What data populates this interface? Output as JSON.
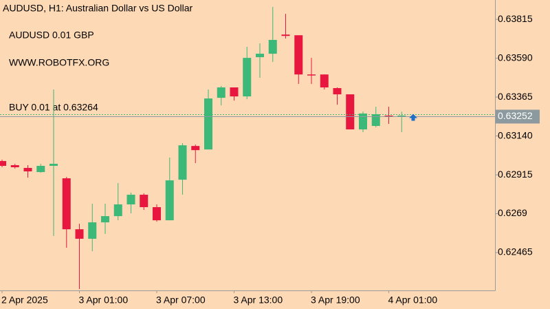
{
  "chart_data": {
    "type": "candlestick",
    "title": "AUDUSD, H1:  Australian Dollar vs US Dollar",
    "annotations": [
      "AUDUSD 0.01 GBP",
      "WWW.ROBOTFX.ORG"
    ],
    "buy_order": {
      "label": "BUY 0.01 at 0.63264",
      "price": 0.63264,
      "color": "#1e6fc8"
    },
    "current_price": 0.63252,
    "up_color": "#3cb878",
    "down_color": "#e8173f",
    "categories": [
      "2 Apr 2025",
      null,
      null,
      null,
      null,
      null,
      "3 Apr 01:00",
      null,
      null,
      null,
      null,
      null,
      "3 Apr 07:00",
      null,
      null,
      null,
      null,
      null,
      "3 Apr 13:00",
      null,
      null,
      null,
      null,
      null,
      "3 Apr 19:00",
      null,
      null,
      null,
      null,
      null,
      "4 Apr 01:00",
      null
    ],
    "open": [
      0.62995,
      0.62971,
      0.62955,
      0.62931,
      0.62967,
      0.62895,
      0.626,
      0.62545,
      0.6264,
      0.62676,
      0.62744,
      0.628,
      0.62728,
      0.62652,
      0.62887,
      0.63082,
      0.63062,
      0.63361,
      0.63421,
      0.63369,
      0.63596,
      0.63616,
      0.63727,
      0.63723,
      0.63496,
      0.63496,
      0.63417,
      0.63381,
      0.63178,
      0.63198,
      0.63258,
      0.63254
    ],
    "high": [
      0.63003,
      0.62979,
      0.62971,
      0.62979,
      0.63409,
      0.62903,
      0.62632,
      0.62748,
      0.62748,
      0.62867,
      0.62812,
      0.62808,
      0.62744,
      0.63015,
      0.63098,
      0.6309,
      0.63409,
      0.63429,
      0.63421,
      0.63656,
      0.63676,
      0.63887,
      0.63847,
      0.63723,
      0.63592,
      0.63496,
      0.63421,
      0.63381,
      0.63281,
      0.63309,
      0.63309,
      0.63281
    ],
    "low": [
      0.62959,
      0.62951,
      0.62899,
      0.62927,
      0.62561,
      0.62493,
      0.62254,
      0.62473,
      0.62573,
      0.62652,
      0.62692,
      0.62712,
      0.62644,
      0.62652,
      0.628,
      0.62983,
      0.63062,
      0.63317,
      0.63345,
      0.63353,
      0.63477,
      0.63568,
      0.63704,
      0.63441,
      0.63441,
      0.63409,
      0.63321,
      0.63178,
      0.63162,
      0.6319,
      0.6321,
      0.63162
    ],
    "close": [
      0.62967,
      0.62959,
      0.62935,
      0.62967,
      0.62979,
      0.626,
      0.62545,
      0.6264,
      0.62676,
      0.62744,
      0.628,
      0.62728,
      0.62652,
      0.62883,
      0.63086,
      0.63058,
      0.63357,
      0.63421,
      0.63369,
      0.63592,
      0.63616,
      0.63696,
      0.63719,
      0.63496,
      0.63492,
      0.63421,
      0.63381,
      0.63178,
      0.6327,
      0.63266,
      0.63254,
      0.63258
    ],
    "ylim": [
      0.62246,
      0.63927
    ],
    "yticks": [
      0.63815,
      {
        "value": 0.6359,
        "label": "0.63590"
      },
      0.63365,
      {
        "value": 0.6314,
        "label": "0.63140"
      },
      0.62915,
      0.6269,
      0.62465
    ]
  }
}
